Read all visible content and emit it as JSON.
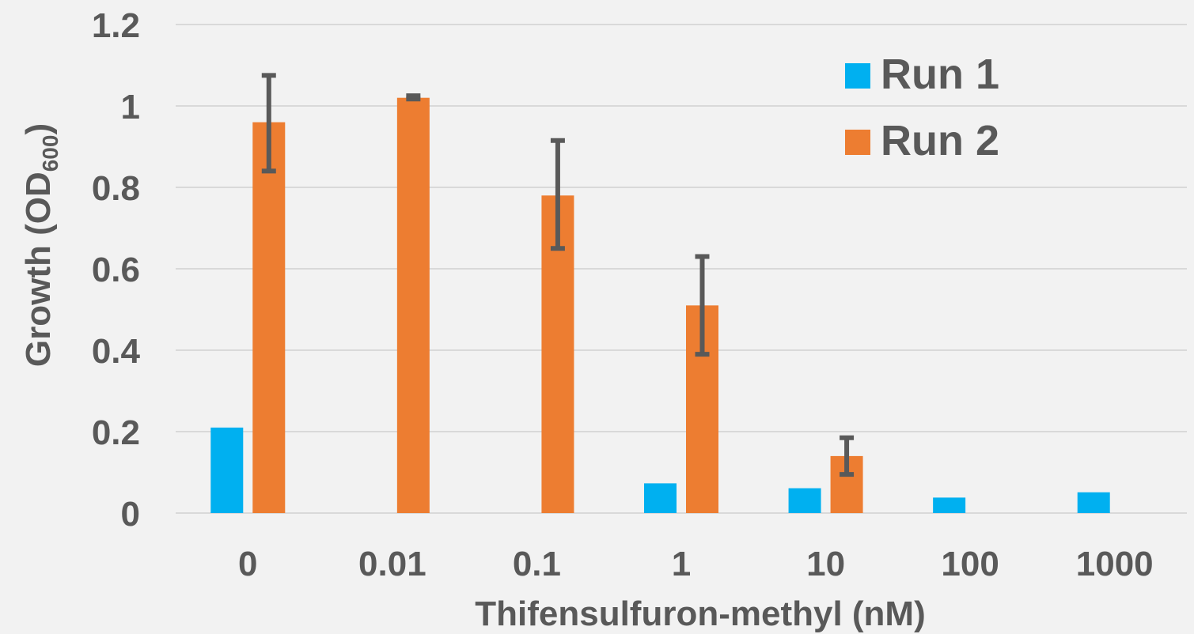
{
  "chart_data": {
    "type": "bar",
    "categories": [
      "0",
      "0.01",
      "0.1",
      "1",
      "10",
      "100",
      "1000"
    ],
    "series": [
      {
        "name": "Run 1",
        "color": "#00b0f0",
        "values": [
          0.21,
          null,
          null,
          0.073,
          0.061,
          0.038,
          0.051
        ],
        "errors": [
          null,
          null,
          null,
          null,
          null,
          null,
          null
        ]
      },
      {
        "name": "Run 2",
        "color": "#ed7d31",
        "values": [
          0.96,
          1.02,
          0.78,
          0.51,
          0.14,
          null,
          null
        ],
        "errors": [
          [
            0.84,
            1.075
          ],
          [
            1.017,
            1.025
          ],
          [
            0.65,
            0.915
          ],
          [
            0.39,
            0.63
          ],
          [
            0.095,
            0.185
          ],
          null,
          null
        ]
      }
    ],
    "xlabel": "Thifensulfuron-methyl (nM)",
    "ylabel_main": "Growth (OD",
    "ylabel_sub": "600",
    "ylabel_end": ")",
    "ylim": [
      0,
      1.2
    ],
    "yticks": [
      "0",
      "0.2",
      "0.4",
      "0.6",
      "0.8",
      "1",
      "1.2"
    ],
    "grid": true,
    "legend_position": "top-right",
    "error_bar_color": "#595959",
    "grid_color": "#d9d9d9"
  }
}
